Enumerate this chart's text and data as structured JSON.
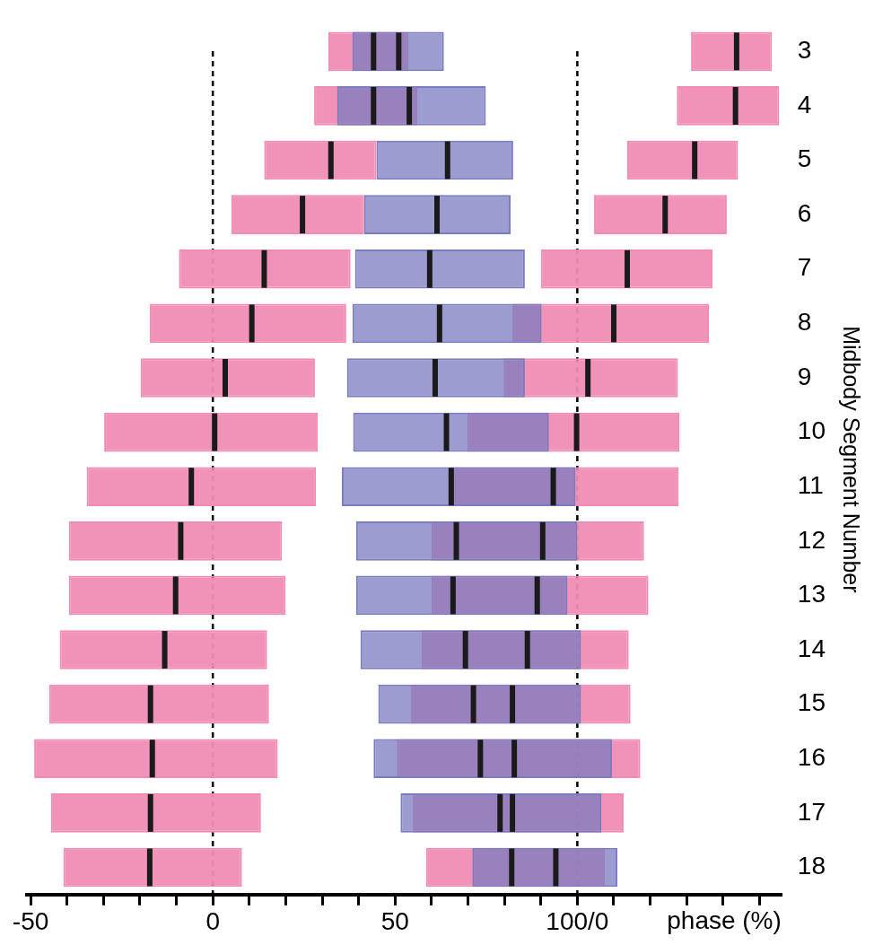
{
  "chart_data": {
    "type": "box",
    "orientation": "horizontal",
    "xlabel": "phase (%)",
    "ylabel": "Midbody Segment Number",
    "categories": [
      "3",
      "4",
      "5",
      "6",
      "7",
      "8",
      "9",
      "10",
      "11",
      "12",
      "13",
      "14",
      "15",
      "16",
      "17",
      "18"
    ],
    "xlim": [
      -51,
      156
    ],
    "xticks": [
      {
        "value": -50,
        "label": "-50"
      },
      {
        "value": -40,
        "label": null
      },
      {
        "value": -30,
        "label": null
      },
      {
        "value": -20,
        "label": null
      },
      {
        "value": -10,
        "label": null
      },
      0,
      {
        "value": 10,
        "label": null
      },
      {
        "value": 20,
        "label": null
      },
      {
        "value": 30,
        "label": null
      },
      {
        "value": 40,
        "label": null
      },
      50,
      {
        "value": 60,
        "label": null
      },
      {
        "value": 70,
        "label": null
      },
      {
        "value": 80,
        "label": null
      },
      {
        "value": 90,
        "label": null
      },
      {
        "value": 100,
        "label": "100/0"
      },
      {
        "value": 110,
        "label": null
      },
      {
        "value": 120,
        "label": null
      },
      {
        "value": 130,
        "label": null
      },
      {
        "value": 140,
        "label": null
      },
      {
        "value": 150,
        "label": null
      }
    ],
    "ref_lines": [
      {
        "axis": "x",
        "value": 0,
        "line_style": "dashed",
        "color": "#000000"
      },
      {
        "axis": "x",
        "value": 100,
        "line_style": "dashed",
        "color": "#000000"
      }
    ],
    "grid": false,
    "legend": false,
    "series": [
      {
        "color": "#f08cb4",
        "boxes": [
          {
            "low": 31.7,
            "q1": 31.7,
            "median": 44.1,
            "q3": 53.7,
            "high": 53.7
          },
          {
            "low": 27.8,
            "q1": 27.8,
            "median": 44.1,
            "q3": 56.1,
            "high": 56.1
          },
          {
            "low": 14.1,
            "q1": 14.1,
            "median": 32.4,
            "q3": 44.9,
            "high": 44.9
          },
          {
            "low": 5.1,
            "q1": 5.1,
            "median": 24.6,
            "q3": 41.5,
            "high": 41.5
          },
          {
            "low": -9.3,
            "q1": -9.3,
            "median": 14.1,
            "q3": 37.8,
            "high": 37.8
          },
          {
            "low": -17.3,
            "q1": -17.3,
            "median": 10.7,
            "q3": 36.6,
            "high": 36.6
          },
          {
            "low": -19.8,
            "q1": -19.8,
            "median": 3.4,
            "q3": 28,
            "high": 28
          },
          {
            "low": -29.8,
            "q1": -29.8,
            "median": 0.5,
            "q3": 28.8,
            "high": 28.8
          },
          {
            "low": -34.6,
            "q1": -34.6,
            "median": -5.9,
            "q3": 28.3,
            "high": 28.3
          },
          {
            "low": -39.5,
            "q1": -39.5,
            "median": -8.8,
            "q3": 19,
            "high": 19
          },
          {
            "low": -39.5,
            "q1": -39.5,
            "median": -10.2,
            "q3": 20,
            "high": 20
          },
          {
            "low": -42,
            "q1": -42,
            "median": -13.2,
            "q3": 14.9,
            "high": 14.9
          },
          {
            "low": -44.9,
            "q1": -44.9,
            "median": -17.1,
            "q3": 15.4,
            "high": 15.4
          },
          {
            "low": -49,
            "q1": -49,
            "median": -16.6,
            "q3": 17.8,
            "high": 17.8
          },
          {
            "low": -44.4,
            "q1": -44.4,
            "median": -17.1,
            "q3": 13.2,
            "high": 13.2
          },
          {
            "low": -41,
            "q1": -41,
            "median": -17.3,
            "q3": 8,
            "high": 8
          }
        ]
      },
      {
        "color": "#f08cb4",
        "boxes": [
          {
            "low": 131.2,
            "q1": 131.2,
            "median": 143.7,
            "q3": 153.4,
            "high": 153.4
          },
          {
            "low": 127.3,
            "q1": 127.3,
            "median": 143.4,
            "q3": 155.4,
            "high": 155.4
          },
          {
            "low": 113.7,
            "q1": 113.7,
            "median": 132.2,
            "q3": 144.1,
            "high": 144.1
          },
          {
            "low": 104.6,
            "q1": 104.6,
            "median": 124.1,
            "q3": 141,
            "high": 141
          },
          {
            "low": 90,
            "q1": 90,
            "median": 113.7,
            "q3": 137.1,
            "high": 137.1
          },
          {
            "low": 82.2,
            "q1": 82.2,
            "median": 110,
            "q3": 136.1,
            "high": 136.1
          },
          {
            "low": 79.8,
            "q1": 79.8,
            "median": 102.9,
            "q3": 127.6,
            "high": 127.6
          },
          {
            "low": 69.8,
            "q1": 69.8,
            "median": 99.8,
            "q3": 128,
            "high": 128
          },
          {
            "low": 65.1,
            "q1": 65.1,
            "median": 93.4,
            "q3": 127.8,
            "high": 127.8
          },
          {
            "low": 60,
            "q1": 60,
            "median": 90.5,
            "q3": 118.3,
            "high": 118.3
          },
          {
            "low": 60,
            "q1": 60,
            "median": 89,
            "q3": 119.5,
            "high": 119.5
          },
          {
            "low": 57.3,
            "q1": 57.3,
            "median": 86.3,
            "q3": 114.1,
            "high": 114.1
          },
          {
            "low": 54.4,
            "q1": 54.4,
            "median": 82.2,
            "q3": 114.6,
            "high": 114.6
          },
          {
            "low": 50.5,
            "q1": 50.5,
            "median": 82.7,
            "q3": 117.3,
            "high": 117.3
          },
          {
            "low": 54.9,
            "q1": 54.9,
            "median": 82.2,
            "q3": 112.7,
            "high": 112.7
          },
          {
            "low": 58.5,
            "q1": 58.5,
            "median": 82,
            "q3": 107.6,
            "high": 107.6
          }
        ]
      },
      {
        "color": "#7b7bc0",
        "boxes": [
          {
            "low": 38.3,
            "q1": 38.3,
            "median": 51,
            "q3": 63.4,
            "high": 63.4
          },
          {
            "low": 34.1,
            "q1": 34.1,
            "median": 53.9,
            "q3": 74.9,
            "high": 74.9
          },
          {
            "low": 44.9,
            "q1": 44.9,
            "median": 64.4,
            "q3": 82.4,
            "high": 82.4
          },
          {
            "low": 41.5,
            "q1": 41.5,
            "median": 61.5,
            "q3": 81.7,
            "high": 81.7
          },
          {
            "low": 39,
            "q1": 39,
            "median": 59.5,
            "q3": 85.6,
            "high": 85.6
          },
          {
            "low": 38.3,
            "q1": 38.3,
            "median": 62.2,
            "q3": 90.2,
            "high": 90.2
          },
          {
            "low": 36.8,
            "q1": 36.8,
            "median": 61,
            "q3": 85.6,
            "high": 85.6
          },
          {
            "low": 38.5,
            "q1": 38.5,
            "median": 64.1,
            "q3": 92.2,
            "high": 92.2
          },
          {
            "low": 35.4,
            "q1": 35.4,
            "median": 65.4,
            "q3": 99.5,
            "high": 99.5
          },
          {
            "low": 39.3,
            "q1": 39.3,
            "median": 66.8,
            "q3": 100,
            "high": 100
          },
          {
            "low": 39.3,
            "q1": 39.3,
            "median": 65.9,
            "q3": 97.3,
            "high": 97.3
          },
          {
            "low": 40.5,
            "q1": 40.5,
            "median": 69.3,
            "q3": 101,
            "high": 101
          },
          {
            "low": 45.4,
            "q1": 45.4,
            "median": 71.5,
            "q3": 101,
            "high": 101
          },
          {
            "low": 44.1,
            "q1": 44.1,
            "median": 73.4,
            "q3": 109.5,
            "high": 109.5
          },
          {
            "low": 51.5,
            "q1": 51.5,
            "median": 78.8,
            "q3": 106.6,
            "high": 106.6
          },
          {
            "low": 71.2,
            "q1": 71.2,
            "median": 94.1,
            "q3": 111,
            "high": 111
          }
        ]
      }
    ]
  }
}
